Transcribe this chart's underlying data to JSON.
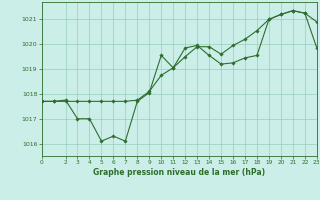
{
  "title": "Graphe pression niveau de la mer (hPa)",
  "bg_color": "#cceee8",
  "grid_color": "#99ccbb",
  "line_color": "#2d6e2d",
  "xlim": [
    0,
    23
  ],
  "ylim": [
    1015.5,
    1021.7
  ],
  "yticks": [
    1016,
    1017,
    1018,
    1019,
    1020,
    1021
  ],
  "xticks": [
    0,
    2,
    3,
    4,
    5,
    6,
    7,
    8,
    9,
    10,
    11,
    12,
    13,
    14,
    15,
    16,
    17,
    18,
    19,
    20,
    21,
    22,
    23
  ],
  "line1_x": [
    0,
    1,
    2,
    3,
    4,
    5,
    6,
    7,
    8,
    9,
    10,
    11,
    12,
    13,
    14,
    15,
    16,
    17,
    18,
    19,
    20,
    21,
    22,
    23
  ],
  "line1_y": [
    1017.7,
    1017.7,
    1017.75,
    1017.0,
    1017.0,
    1016.1,
    1016.3,
    1016.1,
    1017.7,
    1018.05,
    1019.55,
    1019.05,
    1019.85,
    1019.95,
    1019.55,
    1019.2,
    1019.25,
    1019.45,
    1019.55,
    1021.0,
    1021.2,
    1021.35,
    1021.25,
    1019.85
  ],
  "line2_x": [
    0,
    1,
    2,
    3,
    4,
    5,
    6,
    7,
    8,
    9,
    10,
    11,
    12,
    13,
    14,
    15,
    16,
    17,
    18,
    19,
    20,
    21,
    22,
    23
  ],
  "line2_y": [
    1017.7,
    1017.7,
    1017.7,
    1017.7,
    1017.7,
    1017.7,
    1017.7,
    1017.7,
    1017.75,
    1018.1,
    1018.75,
    1019.05,
    1019.5,
    1019.9,
    1019.9,
    1019.6,
    1019.95,
    1020.2,
    1020.55,
    1021.0,
    1021.2,
    1021.35,
    1021.25,
    1020.9
  ]
}
